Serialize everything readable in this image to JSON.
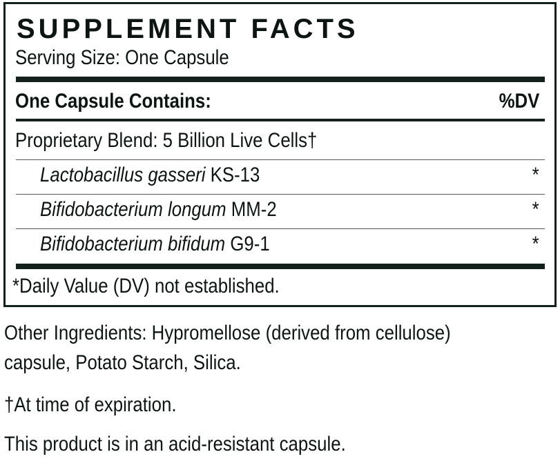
{
  "facts": {
    "title": "SUPPLEMENT FACTS",
    "serving_size": "Serving Size: One Capsule",
    "header_left": "One Capsule Contains:",
    "header_right": "%DV",
    "blend": "Proprietary Blend: 5 Billion Live Cells†",
    "ingredients": [
      {
        "name": "Lactobacillus gasseri",
        "strain": "KS-13",
        "dv": "*"
      },
      {
        "name": "Bifidobacterium longum",
        "strain": "MM-2",
        "dv": "*"
      },
      {
        "name": "Bifidobacterium bifidum",
        "strain": "G9-1",
        "dv": "*"
      }
    ],
    "footnote": "*Daily Value (DV) not established."
  },
  "other": {
    "line1": "Other Ingredients: Hypromellose (derived from cellulose)",
    "line2": "capsule, Potato Starch, Silica.",
    "expiration": "†At time of expiration.",
    "capsule_note": "This product is in an acid-resistant capsule."
  },
  "colors": {
    "ink": "#13201b"
  }
}
